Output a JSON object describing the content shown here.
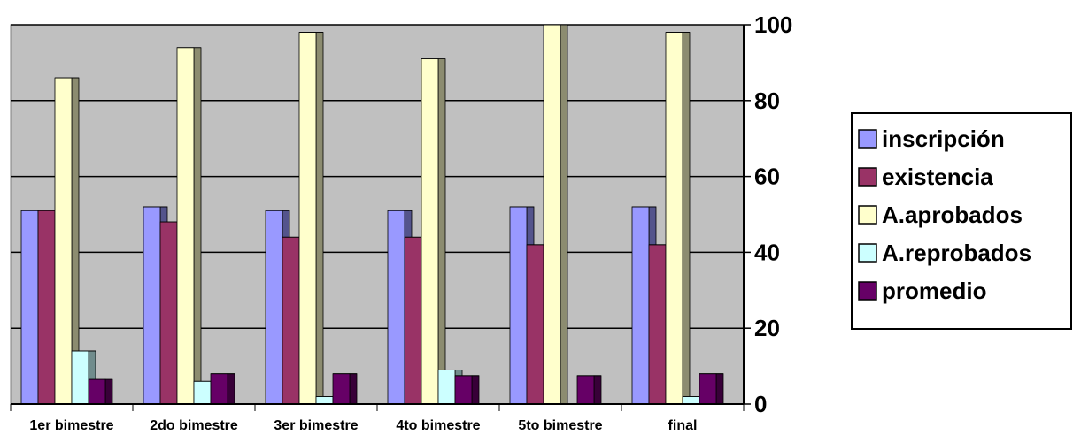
{
  "chart_data": {
    "type": "bar",
    "categories": [
      "1er bimestre",
      "2do bimestre",
      "3er bimestre",
      "4to bimestre",
      "5to bimestre",
      "final"
    ],
    "series": [
      {
        "name": "inscripción",
        "values": [
          51,
          52,
          51,
          51,
          52,
          52
        ],
        "color": "#9999ff"
      },
      {
        "name": "existencia",
        "values": [
          51,
          48,
          44,
          44,
          42,
          42
        ],
        "color": "#993366"
      },
      {
        "name": "A.aprobados",
        "values": [
          86,
          94,
          98,
          91,
          100,
          98
        ],
        "color": "#ffffcc"
      },
      {
        "name": "A.reprobados",
        "values": [
          14,
          6,
          2,
          9,
          0,
          2
        ],
        "color": "#ccffff"
      },
      {
        "name": "promedio",
        "values": [
          6.5,
          8,
          8,
          7.5,
          7.5,
          8
        ],
        "color": "#660066"
      }
    ],
    "y_ticks": [
      "0",
      "20",
      "40",
      "60",
      "80",
      "100"
    ],
    "ylim": [
      0,
      100
    ],
    "y_axis_side": "right",
    "grid": true,
    "plot_background": "#c0c0c0",
    "legend_position": "right"
  }
}
